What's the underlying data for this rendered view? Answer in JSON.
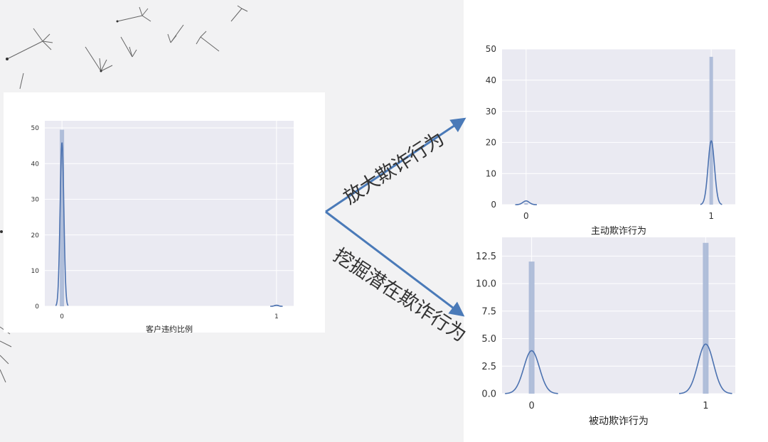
{
  "branches": {
    "up_label": "放大欺诈行为",
    "down_label": "挖掘潜在欺诈行为"
  },
  "colors": {
    "axes_bg": "#eaeaf2",
    "grid": "#ffffff",
    "bar": "#a8b8d6",
    "kde": "#4c72b0",
    "arrow": "#4a7ab8"
  },
  "chart_data": [
    {
      "type": "bar",
      "id": "left",
      "xlabel": "客户违约比例",
      "x_ticks": [
        "0",
        "1"
      ],
      "xlim": [
        -0.08,
        1.08
      ],
      "ylim": [
        0,
        52
      ],
      "y_ticks": [
        "0",
        "10",
        "20",
        "30",
        "40",
        "50"
      ],
      "bars": [
        {
          "x": 0.0,
          "height": 49.5
        },
        {
          "x": 1.0,
          "height": 0.4
        }
      ],
      "kde_peaks": [
        {
          "x": 0.0,
          "height": 46
        },
        {
          "x": 1.0,
          "height": 0.3
        }
      ],
      "grid": true
    },
    {
      "type": "bar",
      "id": "top-right",
      "xlabel": "主动欺诈行为",
      "x_ticks": [
        "0",
        "1"
      ],
      "xlim": [
        -0.13,
        1.13
      ],
      "ylim": [
        0,
        50
      ],
      "y_ticks": [
        "0",
        "10",
        "20",
        "30",
        "40",
        "50"
      ],
      "bars": [
        {
          "x": 0.0,
          "height": 0.5
        },
        {
          "x": 1.0,
          "height": 47.5
        }
      ],
      "kde_peaks": [
        {
          "x": 0.0,
          "height": 1.2
        },
        {
          "x": 1.0,
          "height": 20.5
        }
      ],
      "grid": true
    },
    {
      "type": "bar",
      "id": "bottom-right",
      "xlabel": "被动欺诈行为",
      "x_ticks": [
        "0",
        "1"
      ],
      "xlim": [
        -0.17,
        1.17
      ],
      "ylim": [
        0,
        14.2
      ],
      "y_ticks": [
        "0.0",
        "2.5",
        "5.0",
        "7.5",
        "10.0",
        "12.5"
      ],
      "bars": [
        {
          "x": 0.0,
          "height": 12.0
        },
        {
          "x": 1.0,
          "height": 13.7
        }
      ],
      "kde_peaks": [
        {
          "x": 0.0,
          "height": 3.9
        },
        {
          "x": 1.0,
          "height": 4.5
        }
      ],
      "grid": true
    }
  ]
}
